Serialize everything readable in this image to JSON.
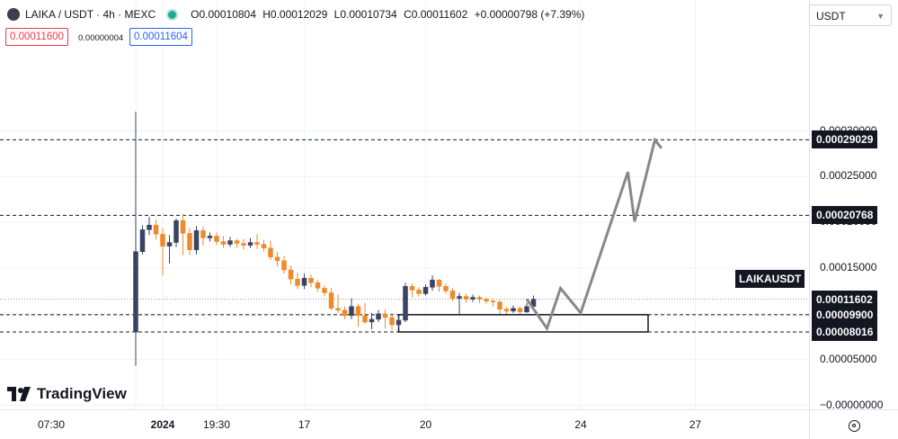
{
  "header": {
    "symbol": "LAIKA / USDT · 4h · MEXC",
    "open": "O0.00010804",
    "high": "H0.00012029",
    "low": "L0.00010734",
    "close": "C0.00011602",
    "change": "+0.00000798 (+7.39%)",
    "sell_price": "0.00011600",
    "spread": "0.00000004",
    "buy_price": "0.00011604",
    "currency": "USDT",
    "status_color": "#22ab94"
  },
  "brand": "TradingView",
  "symbol_label": "LAIKAUSDT",
  "colors": {
    "up": "#3a4362",
    "down": "#ef8a2b",
    "projection": "#888888",
    "dashed": "#131722"
  },
  "chart_data": {
    "type": "candlestick",
    "price_axis": {
      "ylim": [
        0,
        0.00032
      ],
      "ticks": [
        {
          "value": 0.0003,
          "label": "0.00030000"
        },
        {
          "value": 0.00025,
          "label": "0.00025000"
        },
        {
          "value": 0.0002,
          "label": "0.00020000"
        },
        {
          "value": 0.00015,
          "label": "0.00015000"
        },
        {
          "value": 0.0001,
          "label": "0.00010000"
        },
        {
          "value": 5e-05,
          "label": "0.00005000"
        },
        {
          "value": 0,
          "label": "−0.00000000"
        }
      ]
    },
    "time_axis": {
      "ticks": [
        {
          "index": 0,
          "label": "07:30",
          "bold": false
        },
        {
          "index": 4,
          "label": "2024",
          "bold": true
        },
        {
          "index": 12,
          "label": "19:30",
          "bold": false
        },
        {
          "index": 25,
          "label": "17",
          "bold": false
        },
        {
          "index": 43,
          "label": "20",
          "bold": false
        },
        {
          "index": 66,
          "label": "24",
          "bold": false
        },
        {
          "index": 83,
          "label": "27",
          "bold": false
        }
      ]
    },
    "levels": [
      {
        "value": 0.00029029,
        "label": "0.00029029",
        "style": "dashed"
      },
      {
        "value": 0.00020768,
        "label": "0.00020768",
        "style": "dashed"
      },
      {
        "value": 9.9e-05,
        "label": "0.00009900",
        "style": "dashed"
      },
      {
        "value": 8.016e-05,
        "label": "0.00008016",
        "style": "dashed"
      },
      {
        "value": 0.00011602,
        "label": "0.00011602",
        "style": "dotted"
      }
    ],
    "zone": {
      "from_index": 39,
      "to_index": 76,
      "low": 8.016e-05,
      "high": 9.9e-05
    },
    "projection": [
      {
        "index": 58,
        "price": 0.000116
      },
      {
        "index": 61,
        "price": 8.4e-05
      },
      {
        "index": 63,
        "price": 0.000128
      },
      {
        "index": 66,
        "price": 0.000101
      },
      {
        "index": 73,
        "price": 0.000255
      },
      {
        "index": 74,
        "price": 0.000201
      },
      {
        "index": 77,
        "price": 0.00029
      },
      {
        "index": 78,
        "price": 0.000281
      }
    ],
    "candles": [
      [
        8e-05,
        0.000168,
        0.000321,
        4.3e-05
      ],
      [
        0.000168,
        0.000192,
        0.000197,
        0.000165
      ],
      [
        0.000192,
        0.000197,
        0.000206,
        0.000186
      ],
      [
        0.000197,
        0.000187,
        0.000203,
        0.000181
      ],
      [
        0.000187,
        0.000174,
        0.000194,
        0.000142
      ],
      [
        0.000174,
        0.000178,
        0.000186,
        0.000155
      ],
      [
        0.000178,
        0.000202,
        0.000204,
        0.000173
      ],
      [
        0.000202,
        0.000188,
        0.000209,
        0.000164
      ],
      [
        0.000188,
        0.00017,
        0.000194,
        0.000164
      ],
      [
        0.00017,
        0.000191,
        0.000196,
        0.000165
      ],
      [
        0.000191,
        0.000183,
        0.000195,
        0.000175
      ],
      [
        0.000183,
        0.000185,
        0.000189,
        0.000179
      ],
      [
        0.000185,
        0.000179,
        0.000189,
        0.000175
      ],
      [
        0.000179,
        0.000176,
        0.000185,
        0.000172
      ],
      [
        0.000176,
        0.00018,
        0.000184,
        0.000173
      ],
      [
        0.00018,
        0.000177,
        0.000182,
        0.000172
      ],
      [
        0.000177,
        0.000175,
        0.000182,
        0.00017
      ],
      [
        0.000175,
        0.000178,
        0.000183,
        0.000172
      ],
      [
        0.000178,
        0.000176,
        0.000187,
        0.000171
      ],
      [
        0.000176,
        0.000172,
        0.000181,
        0.000168
      ],
      [
        0.000172,
        0.000162,
        0.00018,
        0.000159
      ],
      [
        0.000162,
        0.000158,
        0.000168,
        0.000152
      ],
      [
        0.000158,
        0.000148,
        0.000163,
        0.000144
      ],
      [
        0.000148,
        0.000138,
        0.000153,
        0.000132
      ],
      [
        0.000138,
        0.000131,
        0.000145,
        0.000127
      ],
      [
        0.000131,
        0.000139,
        0.000144,
        0.000127
      ],
      [
        0.000139,
        0.000134,
        0.000143,
        0.000129
      ],
      [
        0.000134,
        0.000128,
        0.000137,
        0.000124
      ],
      [
        0.000128,
        0.000123,
        0.000131,
        0.000119
      ],
      [
        0.000123,
        0.000106,
        0.000128,
        0.000104
      ],
      [
        0.000106,
        0.000104,
        0.000121,
        0.000101
      ],
      [
        0.000104,
        9.8e-05,
        0.000108,
        9.4e-05
      ],
      [
        9.8e-05,
        0.000108,
        0.000117,
        9.4e-05
      ],
      [
        0.000108,
        9.8e-05,
        0.000111,
        8.6e-05
      ],
      [
        9.8e-05,
        9.1e-05,
        0.000112,
        8.9e-05
      ],
      [
        9.1e-05,
        9.4e-05,
        0.000101,
        8.3e-05
      ],
      [
        9.4e-05,
        0.0001,
        0.000104,
        9.1e-05
      ],
      [
        0.0001,
        9.6e-05,
        0.000105,
        8.4e-05
      ],
      [
        9.6e-05,
        8.8e-05,
        0.000101,
        8.2e-05
      ],
      [
        8.8e-05,
        9.3e-05,
        9.7e-05,
        8.5e-05
      ],
      [
        9.3e-05,
        0.00013,
        0.000134,
        9.1e-05
      ],
      [
        0.00013,
        0.000126,
        0.000133,
        0.000118
      ],
      [
        0.000126,
        0.000122,
        0.000129,
        0.000119
      ],
      [
        0.000122,
        0.000129,
        0.000132,
        0.00012
      ],
      [
        0.000129,
        0.000137,
        0.000142,
        0.000125
      ],
      [
        0.000137,
        0.00013,
        0.000138,
        0.000124
      ],
      [
        0.00013,
        0.000125,
        0.000133,
        0.000122
      ],
      [
        0.000125,
        0.000117,
        0.000128,
        0.000114
      ],
      [
        0.000117,
        0.000119,
        0.000123,
        0.0001
      ],
      [
        0.000119,
        0.000116,
        0.000122,
        0.000112
      ],
      [
        0.000116,
        0.000118,
        0.000121,
        0.000113
      ],
      [
        0.000118,
        0.000116,
        0.00012,
        0.000112
      ],
      [
        0.000116,
        0.000114,
        0.000118,
        0.000111
      ],
      [
        0.000114,
        0.000113,
        0.000116,
        0.000108
      ],
      [
        0.000113,
        0.000105,
        0.000115,
        0.0001
      ],
      [
        0.000105,
        0.000103,
        0.000107,
        0.0001
      ],
      [
        0.000103,
        0.000106,
        0.000109,
        0.000101
      ],
      [
        0.000106,
        0.000102,
        0.000108,
        0.0001
      ],
      [
        0.000102,
        0.000108,
        0.000112,
        0.000101
      ],
      [
        0.000108,
        0.000116,
        0.00012,
        0.000107
      ]
    ]
  }
}
